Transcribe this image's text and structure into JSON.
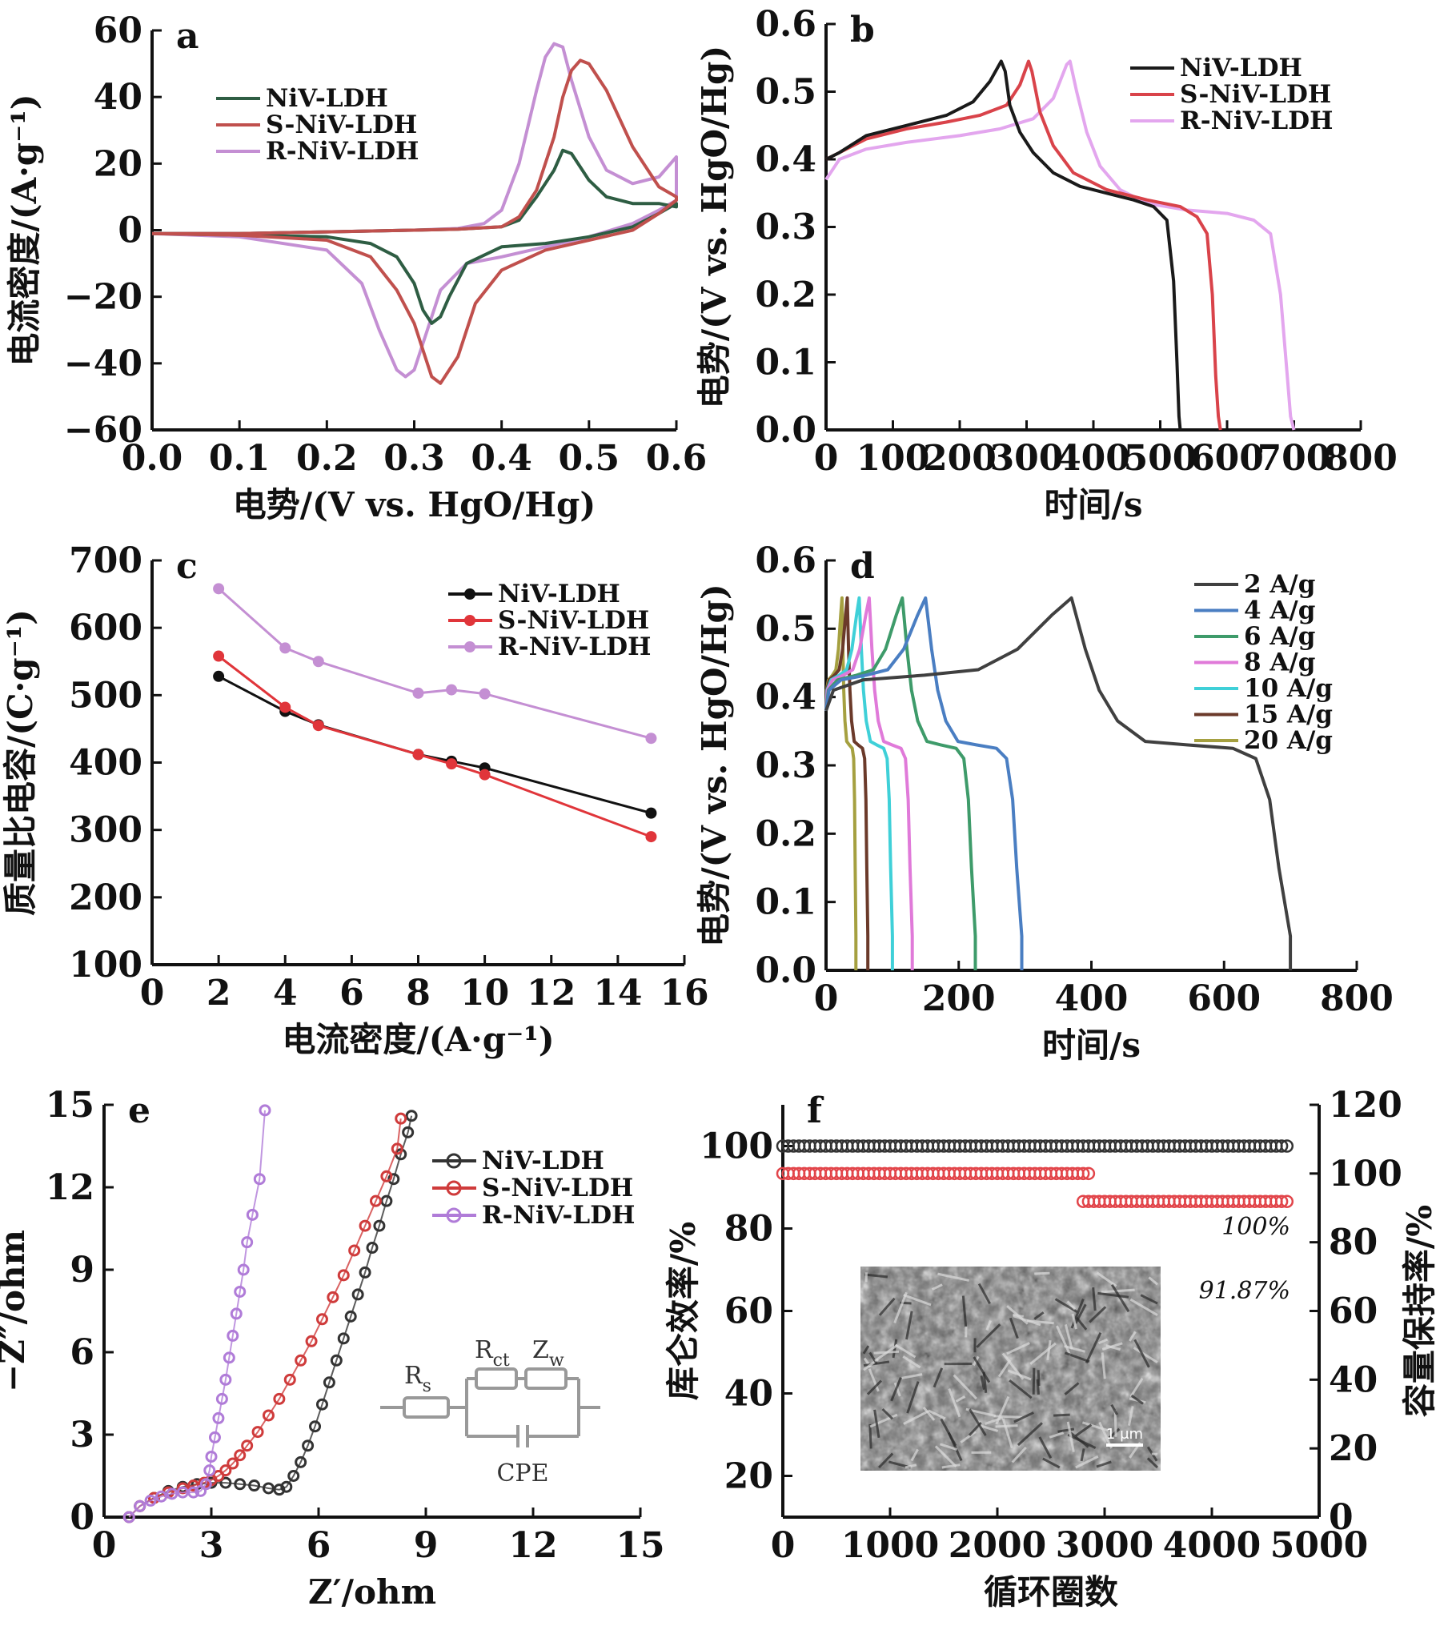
{
  "chart_data": [
    {
      "panel": "a",
      "type": "line",
      "xlabel": "电势/(V vs. HgO/Hg)",
      "ylabel": "电流密度/(A·g⁻¹)",
      "xlim": [
        0.0,
        0.6
      ],
      "ylim": [
        -60,
        60
      ],
      "xticks": [
        "0.0",
        "0.1",
        "0.2",
        "0.3",
        "0.4",
        "0.5",
        "0.6"
      ],
      "yticks": [
        "60",
        "40",
        "20",
        "0",
        "−20",
        "−40",
        "−60"
      ],
      "legend_position": "top-left",
      "series": [
        {
          "name": "NiV-LDH",
          "color": "#2e5d43",
          "x": [
            0.0,
            0.1,
            0.2,
            0.3,
            0.35,
            0.4,
            0.42,
            0.44,
            0.46,
            0.47,
            0.48,
            0.5,
            0.52,
            0.55,
            0.58,
            0.6,
            0.6,
            0.58,
            0.55,
            0.5,
            0.45,
            0.4,
            0.36,
            0.34,
            0.33,
            0.32,
            0.31,
            0.3,
            0.28,
            0.25,
            0.2,
            0.1,
            0.0
          ],
          "y": [
            -1,
            -1,
            -0.5,
            0,
            0.3,
            1,
            3,
            10,
            18,
            24,
            23,
            15,
            10,
            8,
            8,
            7,
            8,
            5,
            1,
            -2,
            -4,
            -5,
            -10,
            -20,
            -26,
            -28,
            -24,
            -16,
            -8,
            -4,
            -2,
            -1.5,
            -1
          ]
        },
        {
          "name": "S-NiV-LDH",
          "color": "#c0504d",
          "x": [
            0.0,
            0.1,
            0.2,
            0.3,
            0.35,
            0.4,
            0.42,
            0.44,
            0.46,
            0.47,
            0.48,
            0.49,
            0.5,
            0.52,
            0.55,
            0.58,
            0.6,
            0.6,
            0.58,
            0.55,
            0.5,
            0.45,
            0.4,
            0.37,
            0.35,
            0.33,
            0.32,
            0.31,
            0.3,
            0.28,
            0.25,
            0.2,
            0.1,
            0.0
          ],
          "y": [
            -1,
            -1,
            -0.5,
            0,
            0.3,
            1,
            4,
            12,
            28,
            40,
            48,
            51,
            50,
            42,
            25,
            13,
            10,
            9,
            5,
            0,
            -3,
            -6,
            -12,
            -22,
            -38,
            -46,
            -44,
            -36,
            -28,
            -18,
            -8,
            -3,
            -1.5,
            -1
          ]
        },
        {
          "name": "R-NiV-LDH",
          "color": "#c48fd3",
          "x": [
            0.0,
            0.1,
            0.2,
            0.3,
            0.35,
            0.38,
            0.4,
            0.42,
            0.44,
            0.45,
            0.46,
            0.47,
            0.48,
            0.5,
            0.52,
            0.55,
            0.58,
            0.6,
            0.6,
            0.58,
            0.55,
            0.5,
            0.45,
            0.4,
            0.36,
            0.33,
            0.31,
            0.3,
            0.29,
            0.28,
            0.26,
            0.24,
            0.2,
            0.1,
            0.0
          ],
          "y": [
            -1,
            -1,
            -0.5,
            0,
            0.5,
            2,
            6,
            20,
            42,
            52,
            56,
            55,
            45,
            28,
            18,
            14,
            16,
            22,
            9,
            6,
            2,
            -2,
            -5,
            -8,
            -10,
            -18,
            -34,
            -42,
            -44,
            -42,
            -30,
            -16,
            -6,
            -2,
            -1
          ]
        }
      ]
    },
    {
      "panel": "b",
      "type": "line",
      "xlabel": "时间/s",
      "ylabel": "电势/(V vs. HgO/Hg)",
      "xlim": [
        0,
        800
      ],
      "ylim": [
        0.0,
        0.6
      ],
      "xticks": [
        "0",
        "100",
        "200",
        "300",
        "400",
        "500",
        "600",
        "700",
        "800"
      ],
      "yticks": [
        "0.6",
        "0.5",
        "0.4",
        "0.3",
        "0.2",
        "0.1",
        "0.0"
      ],
      "legend_position": "top-right",
      "series": [
        {
          "name": "NiV-LDH",
          "color": "#1a1a1a",
          "x": [
            0,
            20,
            60,
            120,
            180,
            220,
            245,
            262,
            268,
            275,
            290,
            310,
            340,
            380,
            420,
            460,
            490,
            510,
            520,
            525,
            528,
            530
          ],
          "y": [
            0.4,
            0.41,
            0.435,
            0.45,
            0.465,
            0.485,
            0.515,
            0.545,
            0.53,
            0.48,
            0.44,
            0.41,
            0.38,
            0.36,
            0.35,
            0.34,
            0.33,
            0.31,
            0.22,
            0.1,
            0.02,
            0.0
          ]
        },
        {
          "name": "S-NiV-LDH",
          "color": "#d9434a",
          "x": [
            0,
            20,
            60,
            120,
            180,
            230,
            270,
            290,
            303,
            308,
            320,
            340,
            370,
            420,
            480,
            530,
            555,
            570,
            578,
            583,
            587,
            590
          ],
          "y": [
            0.4,
            0.41,
            0.43,
            0.445,
            0.455,
            0.465,
            0.48,
            0.51,
            0.545,
            0.53,
            0.47,
            0.42,
            0.38,
            0.355,
            0.34,
            0.33,
            0.315,
            0.29,
            0.2,
            0.08,
            0.02,
            0.0
          ]
        },
        {
          "name": "R-NiV-LDH",
          "color": "#e3a6ee",
          "x": [
            0,
            20,
            60,
            120,
            200,
            260,
            310,
            340,
            360,
            365,
            375,
            390,
            410,
            440,
            480,
            540,
            600,
            640,
            665,
            680,
            690,
            695,
            700
          ],
          "y": [
            0.37,
            0.4,
            0.415,
            0.425,
            0.435,
            0.445,
            0.46,
            0.49,
            0.54,
            0.545,
            0.5,
            0.44,
            0.39,
            0.355,
            0.335,
            0.325,
            0.32,
            0.31,
            0.29,
            0.2,
            0.08,
            0.02,
            0.0
          ]
        }
      ]
    },
    {
      "panel": "c",
      "type": "line",
      "xlabel": "电流密度/(A·g⁻¹)",
      "ylabel": "质量比电容/(C·g⁻¹)",
      "xlim": [
        0,
        16
      ],
      "ylim": [
        100,
        700
      ],
      "xticks": [
        "0",
        "2",
        "4",
        "6",
        "8",
        "10",
        "12",
        "14",
        "16"
      ],
      "yticks": [
        "700",
        "600",
        "500",
        "400",
        "300",
        "200",
        "100"
      ],
      "legend_position": "top-right",
      "series": [
        {
          "name": "NiV-LDH",
          "color": "#111111",
          "x": [
            2,
            4,
            5,
            8,
            9,
            10,
            15
          ],
          "y": [
            528,
            476,
            456,
            412,
            402,
            392,
            325
          ]
        },
        {
          "name": "S-NiV-LDH",
          "color": "#e0353a",
          "x": [
            2,
            4,
            5,
            8,
            9,
            10,
            15
          ],
          "y": [
            558,
            482,
            455,
            412,
            398,
            382,
            290
          ]
        },
        {
          "name": "R-NiV-LDH",
          "color": "#c48fd3",
          "x": [
            2,
            4,
            5,
            8,
            9,
            10,
            15
          ],
          "y": [
            658,
            570,
            550,
            503,
            508,
            502,
            436
          ]
        }
      ]
    },
    {
      "panel": "d",
      "type": "line",
      "xlabel": "时间/s",
      "ylabel": "电势/(V vs. HgO/Hg)",
      "xlim": [
        0,
        800
      ],
      "ylim": [
        0.0,
        0.6
      ],
      "xticks": [
        "0",
        "200",
        "400",
        "600",
        "800"
      ],
      "yticks": [
        "0.6",
        "0.5",
        "0.4",
        "0.3",
        "0.2",
        "0.1",
        "0.0"
      ],
      "legend_position": "top-right",
      "series": [
        {
          "name": "2 A/g",
          "color": "#404040",
          "T": 370,
          "E": 700
        },
        {
          "name": "4 A/g",
          "color": "#4a7ec2",
          "T": 150,
          "E": 295
        },
        {
          "name": "6 A/g",
          "color": "#3e9b6a",
          "T": 115,
          "E": 225
        },
        {
          "name": "8 A/g",
          "color": "#e07ad9",
          "T": 65,
          "E": 130
        },
        {
          "name": "10 A/g",
          "color": "#3fd0d8",
          "T": 50,
          "E": 100
        },
        {
          "name": "15 A/g",
          "color": "#6b3a2a",
          "T": 32,
          "E": 63
        },
        {
          "name": "20 A/g",
          "color": "#a5a040",
          "T": 24,
          "E": 45
        }
      ]
    },
    {
      "panel": "e",
      "type": "scatter",
      "xlabel": "Z′/ohm",
      "ylabel": "−Z″/ohm",
      "xlim": [
        0,
        15
      ],
      "ylim": [
        0,
        15
      ],
      "xticks": [
        "0",
        "3",
        "6",
        "9",
        "12",
        "15"
      ],
      "yticks": [
        "15",
        "12",
        "9",
        "6",
        "3",
        "0"
      ],
      "legend_position": "top-right",
      "series": [
        {
          "name": "NiV-LDH",
          "color": "#333333",
          "x": [
            0.7,
            1.0,
            1.4,
            1.8,
            2.2,
            2.6,
            3.0,
            3.4,
            3.8,
            4.2,
            4.6,
            4.9,
            5.1,
            5.3,
            5.5,
            5.7,
            5.9,
            6.1,
            6.3,
            6.5,
            6.7,
            6.9,
            7.1,
            7.3,
            7.5,
            7.7,
            7.9,
            8.1,
            8.3,
            8.5,
            8.6
          ],
          "y": [
            0.0,
            0.4,
            0.7,
            0.95,
            1.1,
            1.2,
            1.25,
            1.25,
            1.2,
            1.15,
            1.05,
            1.0,
            1.1,
            1.5,
            2.0,
            2.6,
            3.3,
            4.1,
            4.9,
            5.7,
            6.5,
            7.3,
            8.1,
            8.9,
            9.8,
            10.6,
            11.5,
            12.3,
            13.2,
            14.0,
            14.6
          ]
        },
        {
          "name": "S-NiV-LDH",
          "color": "#cf3b3b",
          "x": [
            0.7,
            1.0,
            1.4,
            1.8,
            2.2,
            2.5,
            2.8,
            3.0,
            3.2,
            3.4,
            3.6,
            3.8,
            4.0,
            4.3,
            4.6,
            4.9,
            5.2,
            5.5,
            5.8,
            6.1,
            6.4,
            6.7,
            7.0,
            7.3,
            7.6,
            7.9,
            8.2,
            8.3
          ],
          "y": [
            0.0,
            0.4,
            0.7,
            0.9,
            1.05,
            1.15,
            1.25,
            1.35,
            1.5,
            1.7,
            1.95,
            2.25,
            2.6,
            3.1,
            3.7,
            4.3,
            5.0,
            5.7,
            6.4,
            7.2,
            8.0,
            8.8,
            9.7,
            10.6,
            11.5,
            12.4,
            13.4,
            14.5
          ]
        },
        {
          "name": "R-NiV-LDH",
          "color": "#b07cd8",
          "x": [
            0.7,
            1.0,
            1.3,
            1.6,
            1.9,
            2.2,
            2.5,
            2.7,
            2.85,
            2.95,
            3.0,
            3.1,
            3.2,
            3.3,
            3.4,
            3.5,
            3.6,
            3.7,
            3.8,
            3.9,
            4.0,
            4.15,
            4.35,
            4.5
          ],
          "y": [
            0.0,
            0.4,
            0.6,
            0.75,
            0.85,
            0.9,
            0.9,
            0.95,
            1.2,
            1.7,
            2.2,
            2.9,
            3.6,
            4.3,
            5.0,
            5.8,
            6.6,
            7.4,
            8.2,
            9.0,
            10.0,
            11.0,
            12.3,
            14.8
          ]
        }
      ],
      "inset": {
        "labels": [
          "R",
          "s",
          "R",
          "ct",
          "Z",
          "w",
          "CPE"
        ]
      }
    },
    {
      "panel": "f",
      "type": "scatter",
      "xlabel": "循环圈数",
      "ylabel": "库仑效率/%",
      "ylabel_right": "容量保持率/%",
      "xlim": [
        0,
        5000
      ],
      "ylim": [
        10,
        110
      ],
      "ylim_right": [
        0,
        120
      ],
      "xticks": [
        "0",
        "1000",
        "2000",
        "3000",
        "4000",
        "5000"
      ],
      "yticks": [
        "100",
        "80",
        "60",
        "40",
        "20"
      ],
      "yticks_right": [
        "120",
        "100",
        "80",
        "60",
        "40",
        "20",
        "0"
      ],
      "series": [
        {
          "name": "库仑效率",
          "color": "#333333",
          "x_range": [
            0,
            4700
          ],
          "y": 100
        },
        {
          "name": "容量保持率",
          "color": "#e2454a",
          "x_range": [
            0,
            2850
          ],
          "y_right": 100
        },
        {
          "name": "容量保持率",
          "color": "#e2454a",
          "x_range": [
            2800,
            4700
          ],
          "y_right": 91.87
        }
      ],
      "annotations": [
        "100%",
        "91.87%"
      ],
      "inset_image": "SEM micrograph",
      "scale_bar": "1 μm"
    }
  ]
}
